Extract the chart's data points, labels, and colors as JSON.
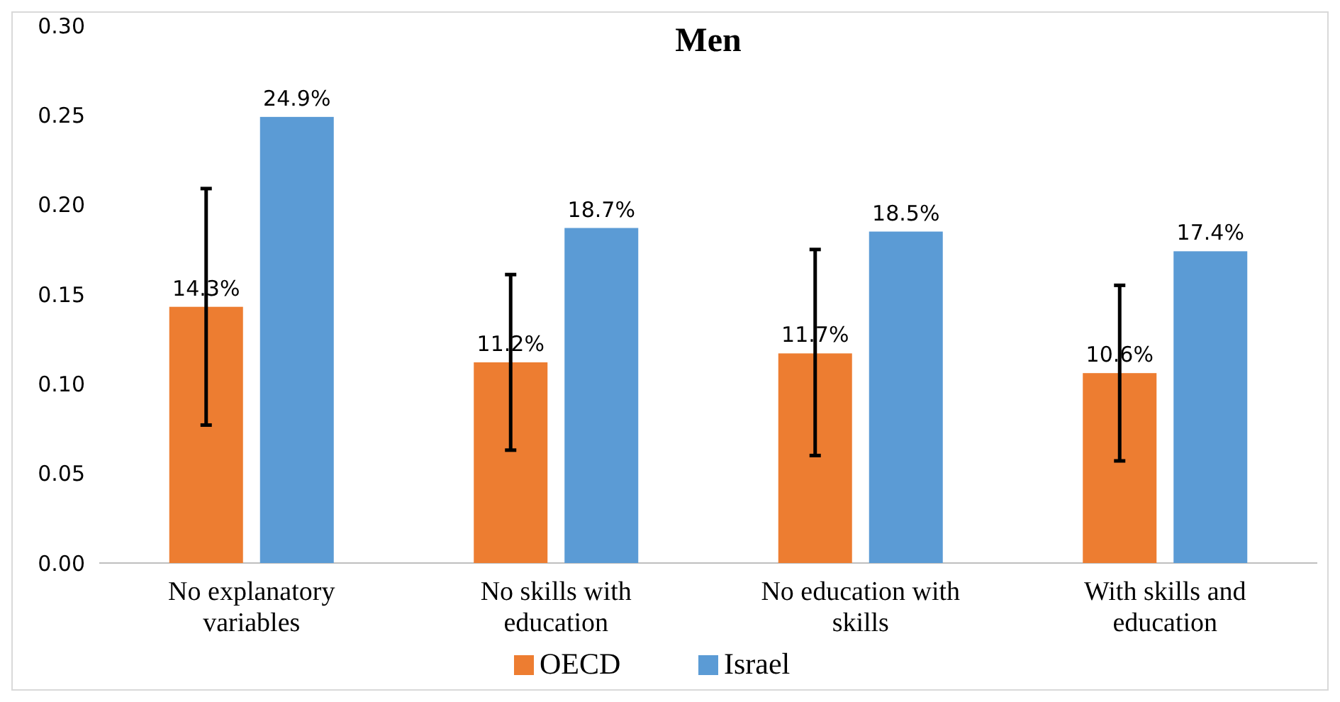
{
  "chart_data": {
    "type": "bar",
    "title": "Men",
    "categories": [
      "No explanatory variables",
      "No skills with education",
      "No education with skills",
      "With skills and education"
    ],
    "series": [
      {
        "name": "OECD",
        "color": "#ed7d31",
        "values": [
          0.143,
          0.112,
          0.117,
          0.106
        ],
        "value_labels": [
          "14.3%",
          "11.2%",
          "11.7%",
          "10.6%"
        ],
        "errors": [
          [
            0.077,
            0.209
          ],
          [
            0.063,
            0.161
          ],
          [
            0.06,
            0.175
          ],
          [
            0.057,
            0.155
          ]
        ]
      },
      {
        "name": "Israel",
        "color": "#5b9bd5",
        "values": [
          0.249,
          0.187,
          0.185,
          0.174
        ],
        "value_labels": [
          "24.9%",
          "18.7%",
          "18.5%",
          "17.4%"
        ]
      }
    ],
    "ylim": [
      0,
      0.3
    ],
    "yticks": [
      {
        "value": 0,
        "label": "0.00"
      },
      {
        "value": 0.05,
        "label": "0.05"
      },
      {
        "value": 0.1,
        "label": "0.10"
      },
      {
        "value": 0.15,
        "label": "0.15"
      },
      {
        "value": 0.2,
        "label": "0.20"
      },
      {
        "value": 0.25,
        "label": "0.25"
      },
      {
        "value": 0.3,
        "label": "0.30"
      }
    ],
    "grid": false,
    "legend": "bottom"
  }
}
